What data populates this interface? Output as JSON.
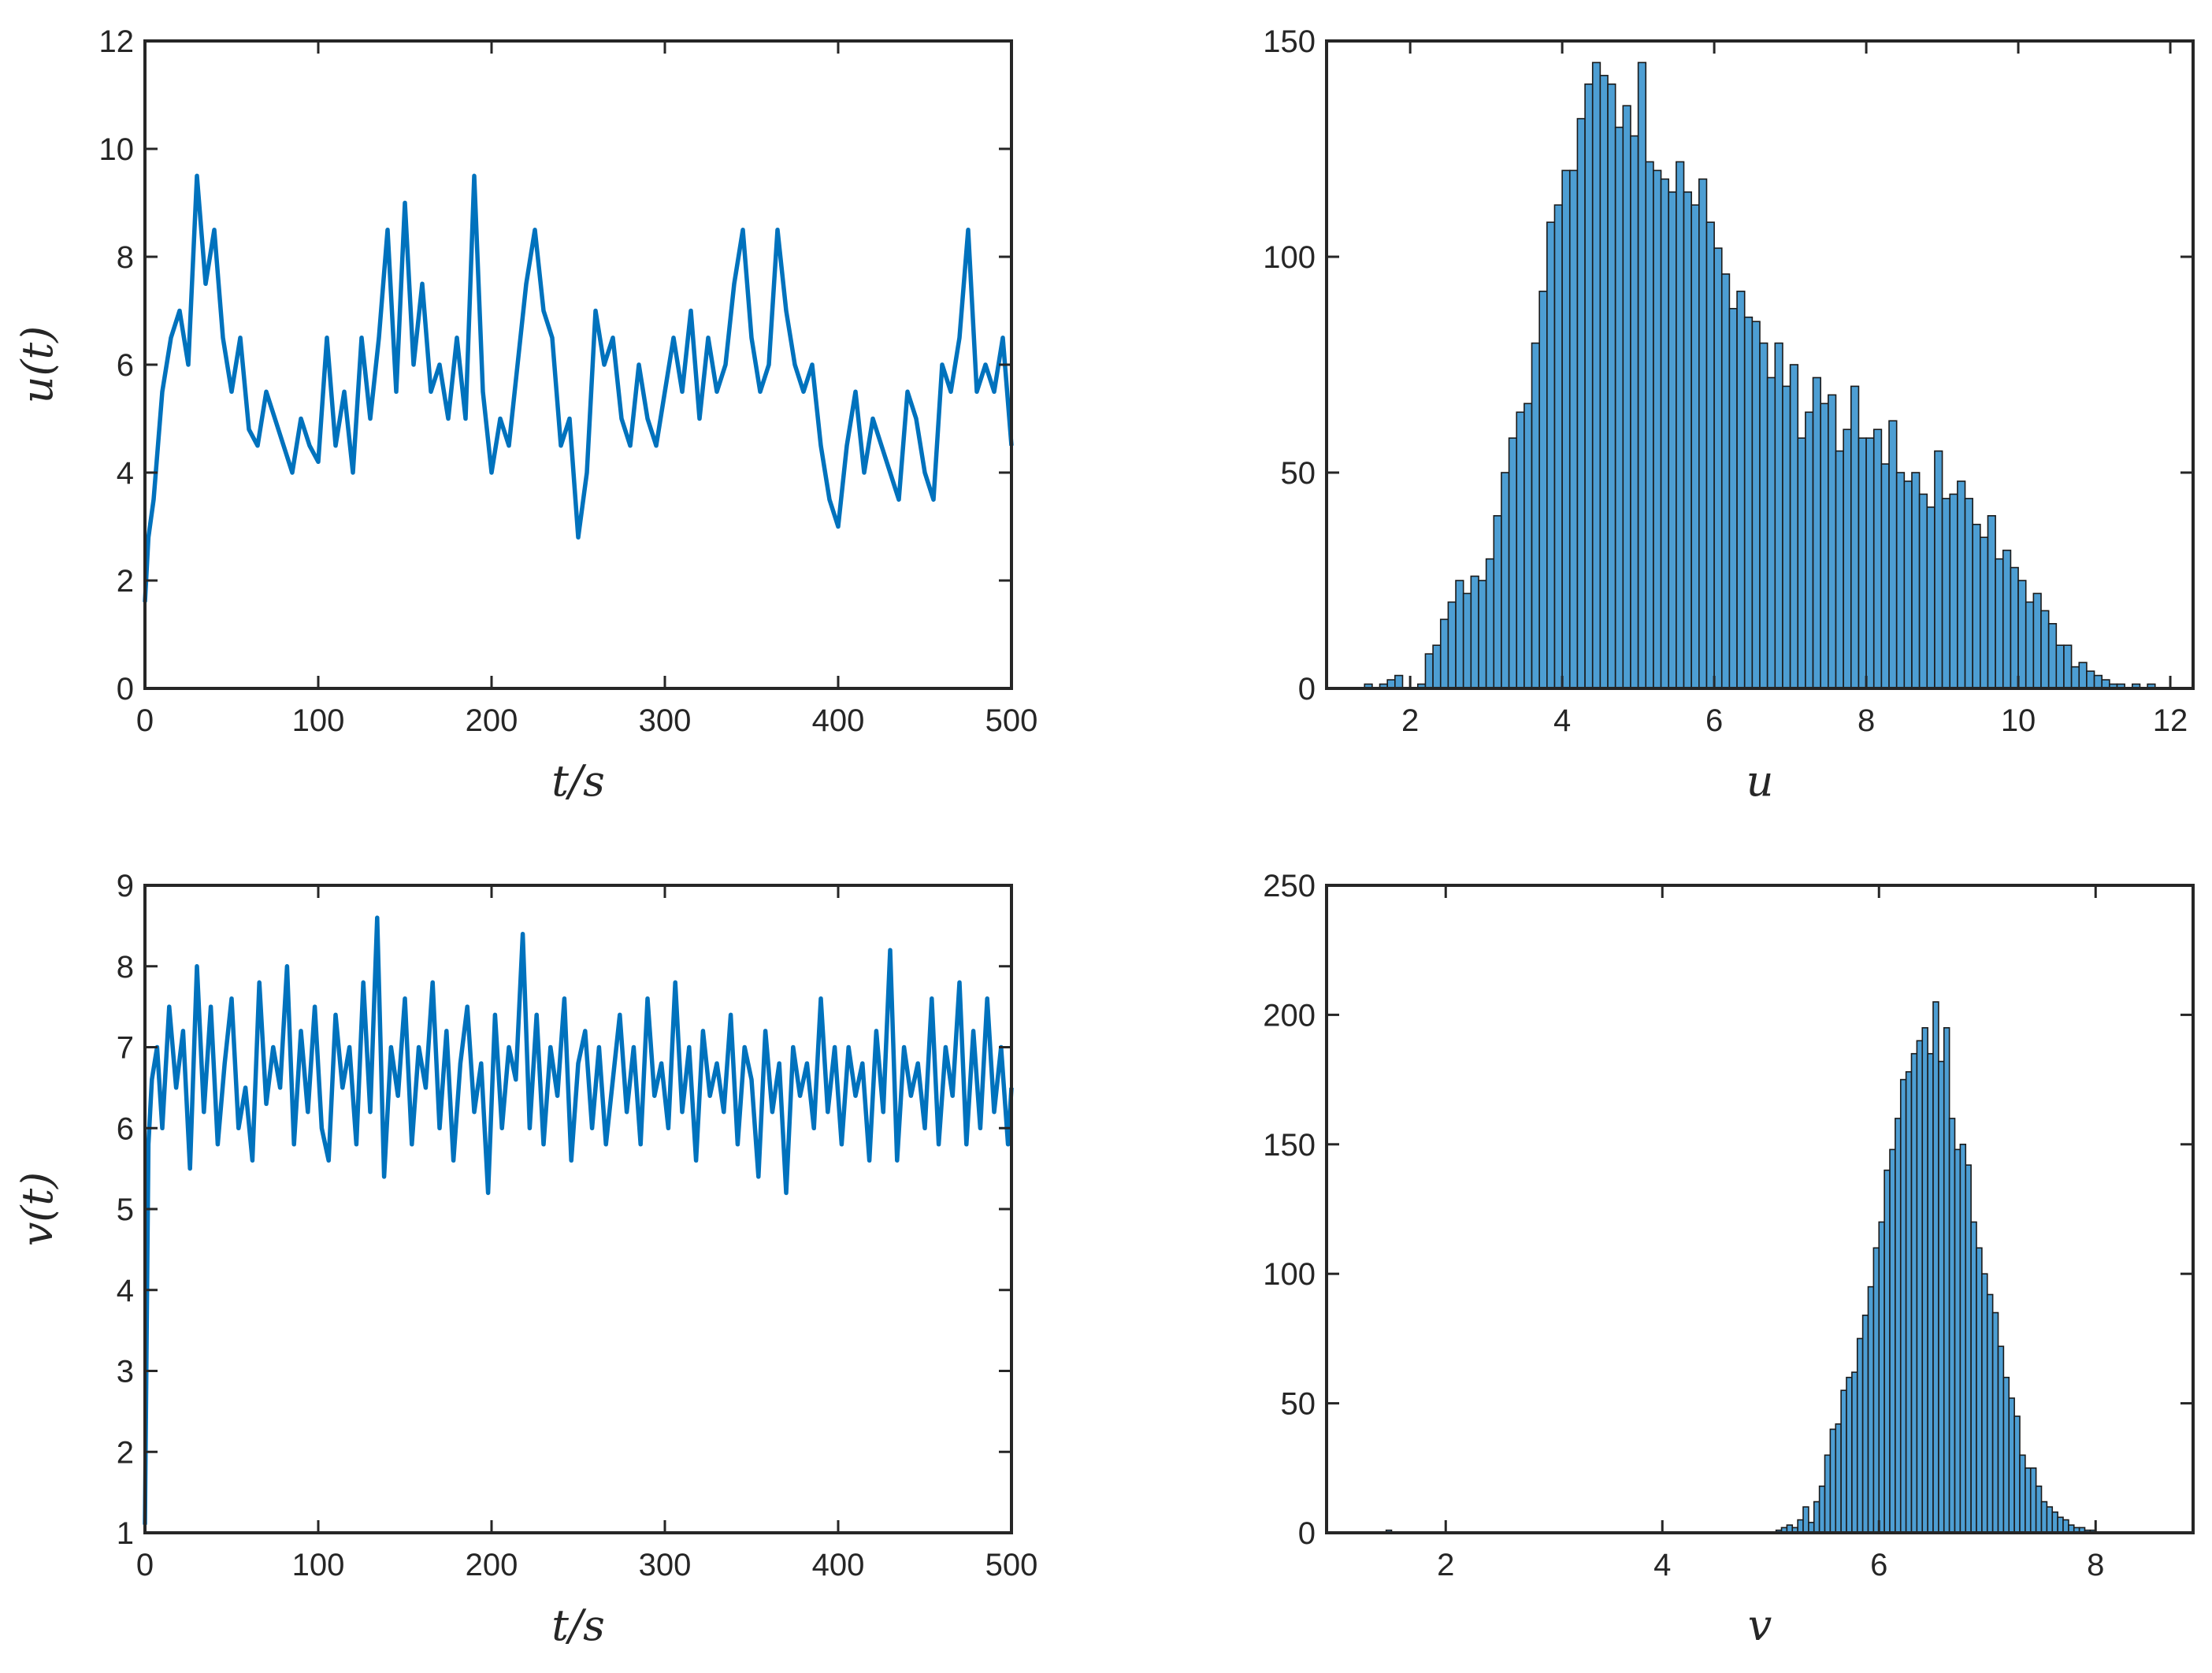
{
  "colors": {
    "line": "#0072BD",
    "bar_fill": "#4D9ED3",
    "bar_edge": "#1a1a1a",
    "axis": "#262626"
  },
  "chart_data": [
    {
      "id": "u_series",
      "type": "line",
      "xlabel": "t/s",
      "ylabel": "u(t)",
      "xlim": [
        0,
        500
      ],
      "ylim": [
        0,
        12
      ],
      "xticks": [
        0,
        100,
        200,
        300,
        400,
        500
      ],
      "yticks": [
        0,
        2,
        4,
        6,
        8,
        10,
        12
      ],
      "xtick_labels": [
        "0",
        "100",
        "200",
        "300",
        "400",
        "500"
      ],
      "ytick_labels": [
        "0",
        "2",
        "4",
        "6",
        "8",
        "10",
        "12"
      ],
      "grid": false,
      "series": [
        {
          "x": [
            0,
            2,
            5,
            10,
            15,
            20,
            25,
            30,
            35,
            40,
            45,
            50,
            55,
            60,
            65,
            70,
            75,
            80,
            85,
            90,
            95,
            100,
            105,
            110,
            115,
            120,
            125,
            130,
            135,
            140,
            145,
            150,
            155,
            160,
            165,
            170,
            175,
            180,
            185,
            190,
            195,
            200,
            205,
            210,
            215,
            220,
            225,
            230,
            235,
            240,
            245,
            250,
            255,
            260,
            265,
            270,
            275,
            280,
            285,
            290,
            295,
            300,
            305,
            310,
            315,
            320,
            325,
            330,
            335,
            340,
            345,
            350,
            355,
            360,
            365,
            370,
            375,
            380,
            385,
            390,
            395,
            400,
            405,
            410,
            415,
            420,
            425,
            430,
            435,
            440,
            445,
            450,
            455,
            460,
            465,
            470,
            475,
            480,
            485,
            490,
            495,
            500
          ],
          "y": [
            1.6,
            2.8,
            3.5,
            5.5,
            6.5,
            7.0,
            6.0,
            9.5,
            7.5,
            8.5,
            6.5,
            5.5,
            6.5,
            4.8,
            4.5,
            5.5,
            5.0,
            4.5,
            4.0,
            5.0,
            4.5,
            4.2,
            6.5,
            4.5,
            5.5,
            4.0,
            6.5,
            5.0,
            6.5,
            8.5,
            5.5,
            9.0,
            6.0,
            7.5,
            5.5,
            6.0,
            5.0,
            6.5,
            5.0,
            9.5,
            5.5,
            4.0,
            5.0,
            4.5,
            6.0,
            7.5,
            8.5,
            7.0,
            6.5,
            4.5,
            5.0,
            2.8,
            4.0,
            7.0,
            6.0,
            6.5,
            5.0,
            4.5,
            6.0,
            5.0,
            4.5,
            5.5,
            6.5,
            5.5,
            7.0,
            5.0,
            6.5,
            5.5,
            6.0,
            7.5,
            8.5,
            6.5,
            5.5,
            6.0,
            8.5,
            7.0,
            6.0,
            5.5,
            6.0,
            4.5,
            3.5,
            3.0,
            4.5,
            5.5,
            4.0,
            5.0,
            4.5,
            4.0,
            3.5,
            5.5,
            5.0,
            4.0,
            3.5,
            6.0,
            5.5,
            6.5,
            8.5,
            5.5,
            6.0,
            5.5,
            6.5,
            4.5
          ]
        }
      ]
    },
    {
      "id": "u_hist",
      "type": "bar",
      "xlabel": "u",
      "ylabel": "",
      "xlim": [
        0.9,
        12.3
      ],
      "ylim": [
        0,
        150
      ],
      "xticks": [
        2,
        4,
        6,
        8,
        10,
        12
      ],
      "yticks": [
        0,
        50,
        100,
        150
      ],
      "xtick_labels": [
        "2",
        "4",
        "6",
        "8",
        "10",
        "12"
      ],
      "ytick_labels": [
        "0",
        "50",
        "100",
        "150"
      ],
      "grid": false,
      "bin_start": 1.4,
      "bin_width": 0.1,
      "values": [
        1,
        0,
        1,
        2,
        3,
        0,
        0,
        1,
        8,
        10,
        16,
        20,
        25,
        22,
        26,
        25,
        30,
        40,
        50,
        58,
        64,
        66,
        80,
        92,
        108,
        112,
        120,
        120,
        132,
        140,
        145,
        142,
        140,
        130,
        135,
        128,
        145,
        122,
        120,
        118,
        115,
        122,
        115,
        112,
        118,
        108,
        102,
        96,
        88,
        92,
        86,
        85,
        80,
        72,
        80,
        70,
        75,
        58,
        64,
        72,
        66,
        68,
        55,
        60,
        70,
        58,
        58,
        60,
        52,
        62,
        50,
        48,
        50,
        45,
        42,
        55,
        44,
        45,
        48,
        44,
        38,
        35,
        40,
        30,
        32,
        28,
        25,
        20,
        22,
        18,
        15,
        10,
        10,
        5,
        6,
        4,
        3,
        2,
        1,
        1,
        0,
        1,
        0,
        1,
        0,
        0,
        0,
        0,
        0,
        0,
        0,
        0,
        0,
        0,
        0,
        0,
        0,
        0,
        0,
        0,
        0,
        0,
        1,
        0,
        0,
        0
      ]
    },
    {
      "id": "v_series",
      "type": "line",
      "xlabel": "t/s",
      "ylabel": "v(t)",
      "xlim": [
        0,
        500
      ],
      "ylim": [
        1,
        9
      ],
      "xticks": [
        0,
        100,
        200,
        300,
        400,
        500
      ],
      "yticks": [
        1,
        2,
        3,
        4,
        5,
        6,
        7,
        8,
        9
      ],
      "xtick_labels": [
        "0",
        "100",
        "200",
        "300",
        "400",
        "500"
      ],
      "ytick_labels": [
        "1",
        "2",
        "3",
        "4",
        "5",
        "6",
        "7",
        "8",
        "9"
      ],
      "grid": false,
      "series": [
        {
          "x": [
            0,
            1,
            2,
            4,
            7,
            10,
            14,
            18,
            22,
            26,
            30,
            34,
            38,
            42,
            46,
            50,
            54,
            58,
            62,
            66,
            70,
            74,
            78,
            82,
            86,
            90,
            94,
            98,
            102,
            106,
            110,
            114,
            118,
            122,
            126,
            130,
            134,
            138,
            142,
            146,
            150,
            154,
            158,
            162,
            166,
            170,
            174,
            178,
            182,
            186,
            190,
            194,
            198,
            202,
            206,
            210,
            214,
            218,
            222,
            226,
            230,
            234,
            238,
            242,
            246,
            250,
            254,
            258,
            262,
            266,
            270,
            274,
            278,
            282,
            286,
            290,
            294,
            298,
            302,
            306,
            310,
            314,
            318,
            322,
            326,
            330,
            334,
            338,
            342,
            346,
            350,
            354,
            358,
            362,
            366,
            370,
            374,
            378,
            382,
            386,
            390,
            394,
            398,
            402,
            406,
            410,
            414,
            418,
            422,
            426,
            430,
            434,
            438,
            442,
            446,
            450,
            454,
            458,
            462,
            466,
            470,
            474,
            478,
            482,
            486,
            490,
            494,
            498,
            500
          ],
          "y": [
            1.1,
            3.5,
            5.8,
            6.6,
            7.0,
            6.0,
            7.5,
            6.5,
            7.2,
            5.5,
            8.0,
            6.2,
            7.5,
            5.8,
            6.8,
            7.6,
            6.0,
            6.5,
            5.6,
            7.8,
            6.3,
            7.0,
            6.5,
            8.0,
            5.8,
            7.2,
            6.2,
            7.5,
            6.0,
            5.6,
            7.4,
            6.5,
            7.0,
            5.8,
            7.8,
            6.2,
            8.6,
            5.4,
            7.0,
            6.4,
            7.6,
            5.8,
            7.0,
            6.5,
            7.8,
            6.0,
            7.2,
            5.6,
            6.8,
            7.5,
            6.2,
            6.8,
            5.2,
            7.4,
            6.0,
            7.0,
            6.6,
            8.4,
            6.0,
            7.4,
            5.8,
            7.0,
            6.4,
            7.6,
            5.6,
            6.8,
            7.2,
            6.0,
            7.0,
            5.8,
            6.6,
            7.4,
            6.2,
            7.0,
            5.8,
            7.6,
            6.4,
            6.8,
            6.0,
            7.8,
            6.2,
            7.0,
            5.6,
            7.2,
            6.4,
            6.8,
            6.2,
            7.4,
            5.8,
            7.0,
            6.6,
            5.4,
            7.2,
            6.2,
            6.8,
            5.2,
            7.0,
            6.4,
            6.8,
            6.0,
            7.6,
            6.2,
            7.0,
            5.8,
            7.0,
            6.4,
            6.8,
            5.6,
            7.2,
            6.2,
            8.2,
            5.6,
            7.0,
            6.4,
            6.8,
            6.0,
            7.6,
            5.8,
            7.0,
            6.4,
            7.8,
            5.8,
            7.2,
            6.0,
            7.6,
            6.2,
            7.0,
            5.8,
            6.5
          ]
        }
      ]
    },
    {
      "id": "v_hist",
      "type": "bar",
      "xlabel": "v",
      "ylabel": "",
      "xlim": [
        0.9,
        8.9
      ],
      "ylim": [
        0,
        250
      ],
      "xticks": [
        2,
        4,
        6,
        8
      ],
      "yticks": [
        0,
        50,
        100,
        150,
        200,
        250
      ],
      "xtick_labels": [
        "2",
        "4",
        "6",
        "8"
      ],
      "ytick_labels": [
        "0",
        "50",
        "100",
        "150",
        "200",
        "250"
      ],
      "grid": false,
      "bin_start": 1.1,
      "bin_width": 0.05,
      "values": [
        0,
        0,
        0,
        0,
        0,
        0,
        0,
        1,
        0,
        0,
        0,
        0,
        0,
        0,
        0,
        0,
        0,
        0,
        0,
        0,
        0,
        0,
        0,
        0,
        0,
        0,
        0,
        0,
        0,
        0,
        0,
        0,
        0,
        0,
        0,
        0,
        0,
        0,
        0,
        0,
        0,
        0,
        0,
        0,
        0,
        0,
        0,
        0,
        0,
        0,
        0,
        0,
        0,
        0,
        0,
        0,
        0,
        0,
        0,
        0,
        0,
        0,
        0,
        0,
        0,
        0,
        0,
        0,
        0,
        0,
        0,
        0,
        0,
        0,
        0,
        0,
        0,
        0,
        0,
        1,
        2,
        3,
        2,
        5,
        10,
        4,
        12,
        18,
        30,
        40,
        42,
        55,
        60,
        62,
        75,
        84,
        95,
        110,
        120,
        140,
        148,
        160,
        175,
        178,
        185,
        190,
        195,
        185,
        205,
        182,
        195,
        160,
        148,
        150,
        142,
        120,
        110,
        100,
        92,
        85,
        72,
        60,
        52,
        45,
        30,
        25,
        25,
        18,
        12,
        10,
        8,
        6,
        5,
        3,
        2,
        2,
        1,
        1,
        0,
        0
      ]
    }
  ]
}
